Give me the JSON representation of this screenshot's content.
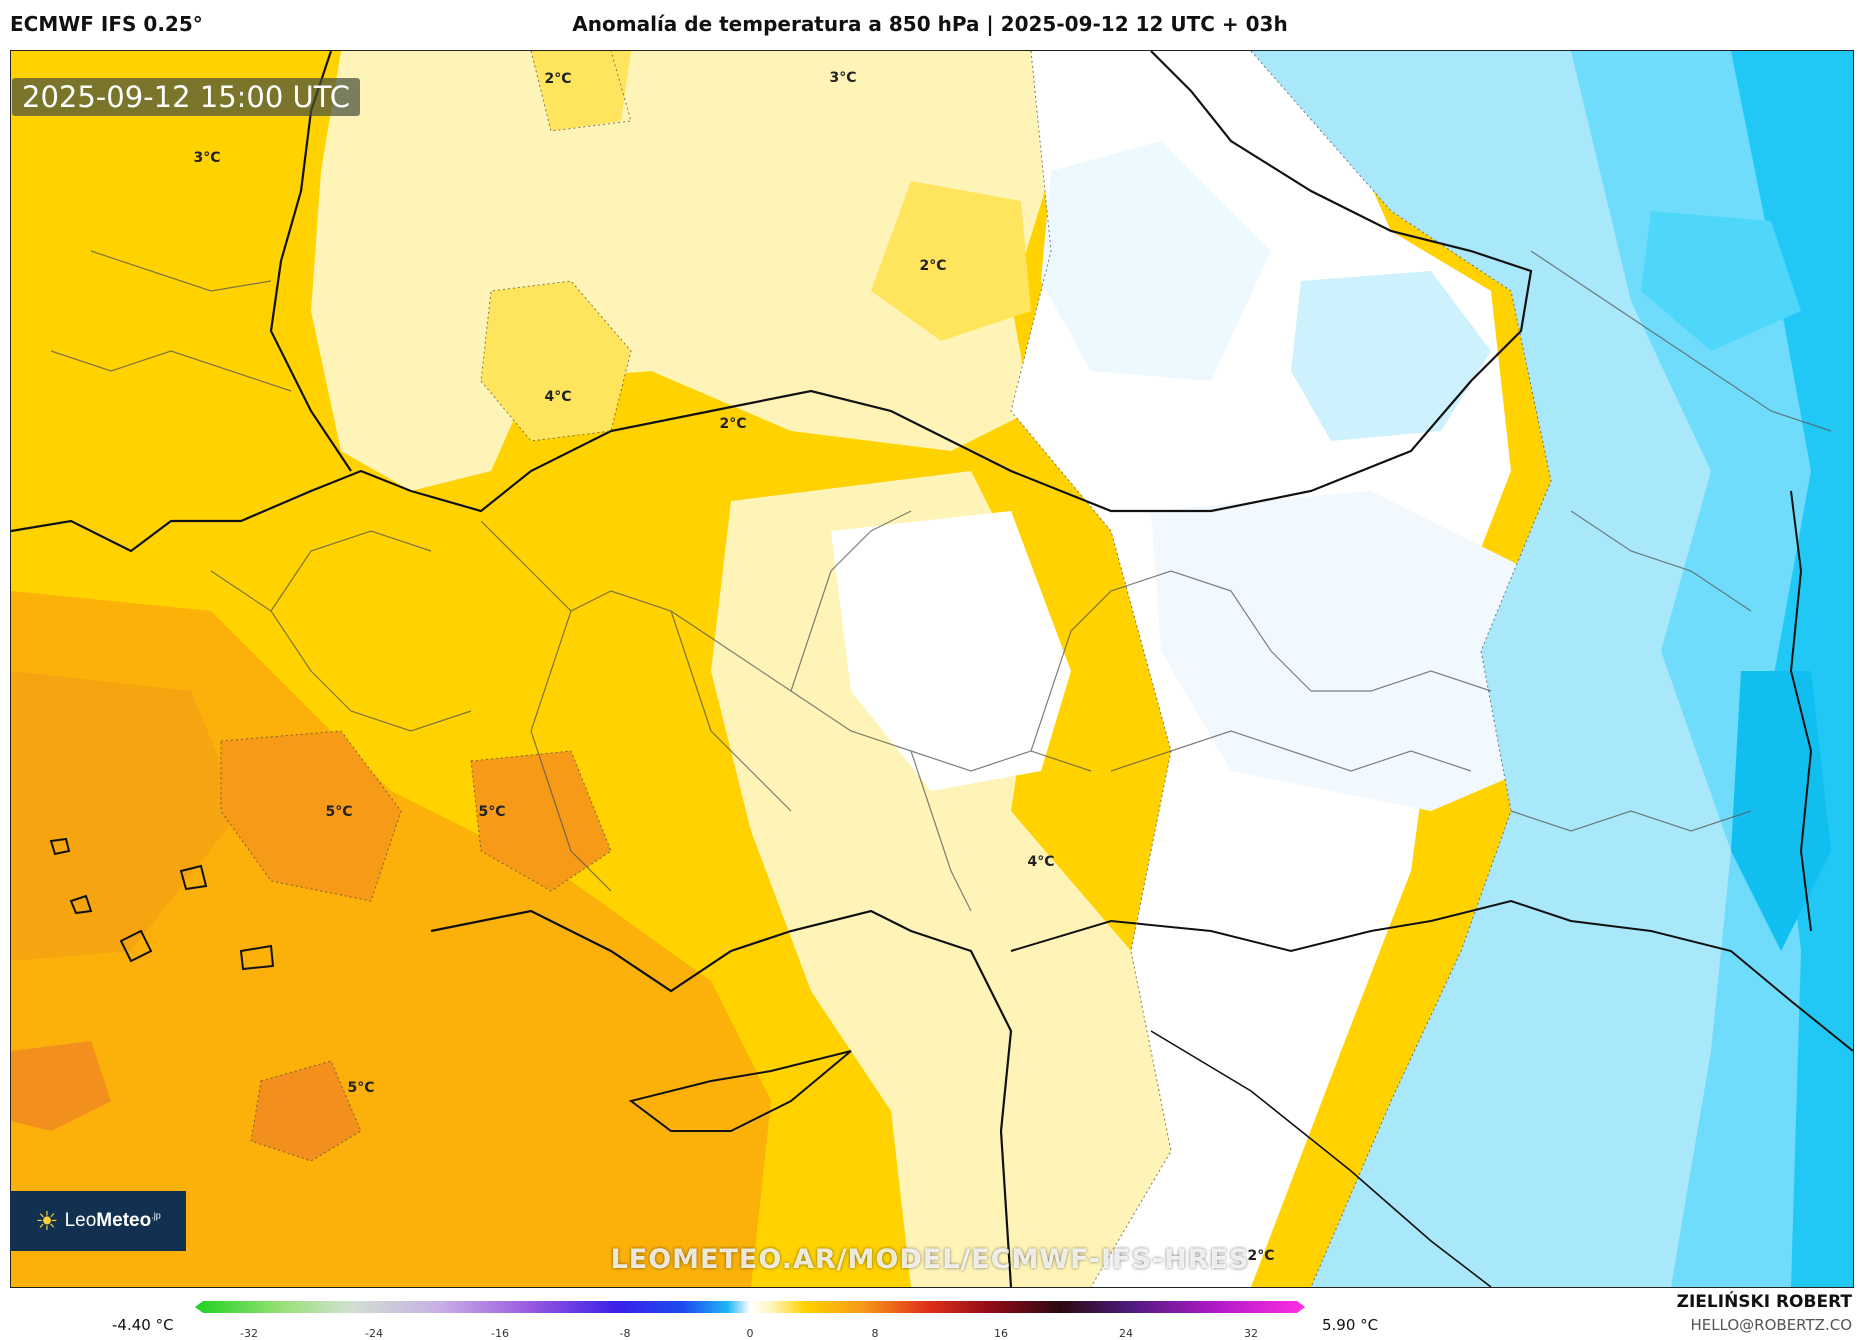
{
  "header": {
    "model": "ECMWF IFS 0.25°",
    "title": "Anomalía de temperatura a 850 hPa | 2025-09-12 12 UTC + 03h"
  },
  "map": {
    "valid_time": "2025-09-12 15:00 UTC",
    "watermark": "LEOMETEO.AR/MODEL/ECMWF-IFS-HRES",
    "logo": {
      "brand_light": "Leo",
      "brand_bold": "Meteo",
      "suffix": ".jp",
      "icon": "sun-icon"
    },
    "contour_labels": [
      {
        "text": "2°C"
      },
      {
        "text": "3°C"
      },
      {
        "text": "3°C"
      },
      {
        "text": "2°C"
      },
      {
        "text": "4°C"
      },
      {
        "text": "2°C"
      },
      {
        "text": "5°C"
      },
      {
        "text": "5°C"
      },
      {
        "text": "4°C"
      },
      {
        "text": "5°C"
      },
      {
        "text": "2°C"
      }
    ],
    "palette": {
      "warm_strong": "#fbb10a",
      "warm_orange": "#f79a18",
      "warm": "#ffd200",
      "warm_light": "#ffe45e",
      "warm_pale": "#fff4b8",
      "neutral": "#ffffff",
      "cool_pale": "#e9f7ff",
      "cool_light": "#a9e7fb",
      "cool": "#4fd7fb",
      "cool_strong": "#22c8f5"
    }
  },
  "legend": {
    "min": "-4.40 °C",
    "max": "5.90 °C",
    "ticks": [
      "-32",
      "-24",
      "-16",
      "-8",
      "0",
      "8",
      "16",
      "24",
      "32"
    ]
  },
  "credit": {
    "name": "ZIELIŃSKI ROBERT",
    "email": "HELLO@ROBERTZ.CO"
  }
}
